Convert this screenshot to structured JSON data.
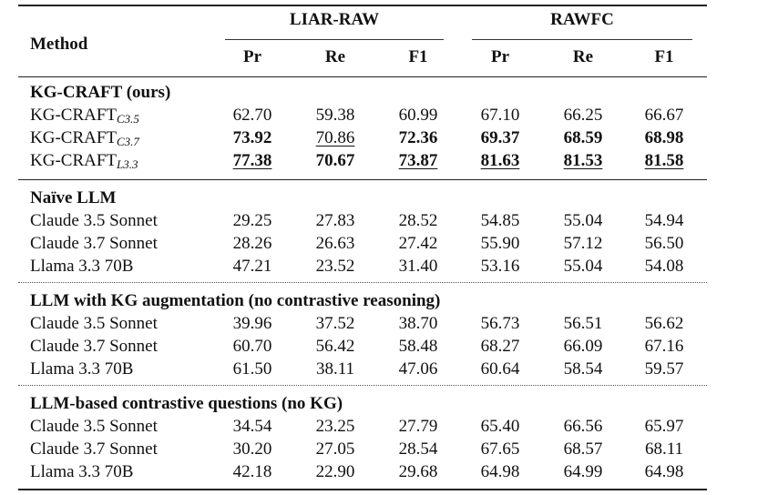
{
  "header": {
    "method": "Method",
    "groups": [
      "LIAR-RAW",
      "RAWFC"
    ],
    "metrics": [
      "Pr",
      "Re",
      "F1",
      "Pr",
      "Re",
      "F1"
    ]
  },
  "sections": [
    {
      "title": "KG-CRAFT (ours)",
      "rows": [
        {
          "name": "KG-CRAFT",
          "sub": "C3.5",
          "values": [
            "62.70",
            "59.38",
            "60.99",
            "67.10",
            "66.25",
            "66.67"
          ],
          "bold": [
            0,
            0,
            0,
            0,
            0,
            0
          ],
          "underline": [
            0,
            0,
            0,
            0,
            0,
            0
          ]
        },
        {
          "name": "KG-CRAFT",
          "sub": "C3.7",
          "values": [
            "73.92",
            "70.86",
            "72.36",
            "69.37",
            "68.59",
            "68.98"
          ],
          "bold": [
            1,
            0,
            1,
            1,
            1,
            1
          ],
          "underline": [
            0,
            1,
            0,
            0,
            0,
            0
          ]
        },
        {
          "name": "KG-CRAFT",
          "sub": "L3.3",
          "values": [
            "77.38",
            "70.67",
            "73.87",
            "81.63",
            "81.53",
            "81.58"
          ],
          "bold": [
            1,
            1,
            1,
            1,
            1,
            1
          ],
          "underline": [
            1,
            0,
            1,
            1,
            1,
            1
          ]
        }
      ]
    },
    {
      "title": "Naïve LLM",
      "rows": [
        {
          "name": "Claude 3.5 Sonnet",
          "values": [
            "29.25",
            "27.83",
            "28.52",
            "54.85",
            "55.04",
            "54.94"
          ]
        },
        {
          "name": "Claude 3.7 Sonnet",
          "values": [
            "28.26",
            "26.63",
            "27.42",
            "55.90",
            "57.12",
            "56.50"
          ]
        },
        {
          "name": "Llama 3.3 70B",
          "values": [
            "47.21",
            "23.52",
            "31.40",
            "53.16",
            "55.04",
            "54.08"
          ]
        }
      ]
    },
    {
      "title": "LLM with KG augmentation (no contrastive reasoning)",
      "rows": [
        {
          "name": "Claude 3.5 Sonnet",
          "values": [
            "39.96",
            "37.52",
            "38.70",
            "56.73",
            "56.51",
            "56.62"
          ]
        },
        {
          "name": "Claude 3.7 Sonnet",
          "values": [
            "60.70",
            "56.42",
            "58.48",
            "68.27",
            "66.09",
            "67.16"
          ]
        },
        {
          "name": "Llama 3.3 70B",
          "values": [
            "61.50",
            "38.11",
            "47.06",
            "60.64",
            "58.54",
            "59.57"
          ]
        }
      ]
    },
    {
      "title": "LLM-based contrastive questions (no KG)",
      "rows": [
        {
          "name": "Claude 3.5 Sonnet",
          "values": [
            "34.54",
            "23.25",
            "27.79",
            "65.40",
            "66.56",
            "65.97"
          ]
        },
        {
          "name": "Claude 3.7 Sonnet",
          "values": [
            "30.20",
            "27.05",
            "28.54",
            "67.65",
            "68.57",
            "68.11"
          ]
        },
        {
          "name": "Llama 3.3 70B",
          "values": [
            "42.18",
            "22.90",
            "29.68",
            "64.98",
            "64.99",
            "64.98"
          ]
        }
      ]
    }
  ]
}
